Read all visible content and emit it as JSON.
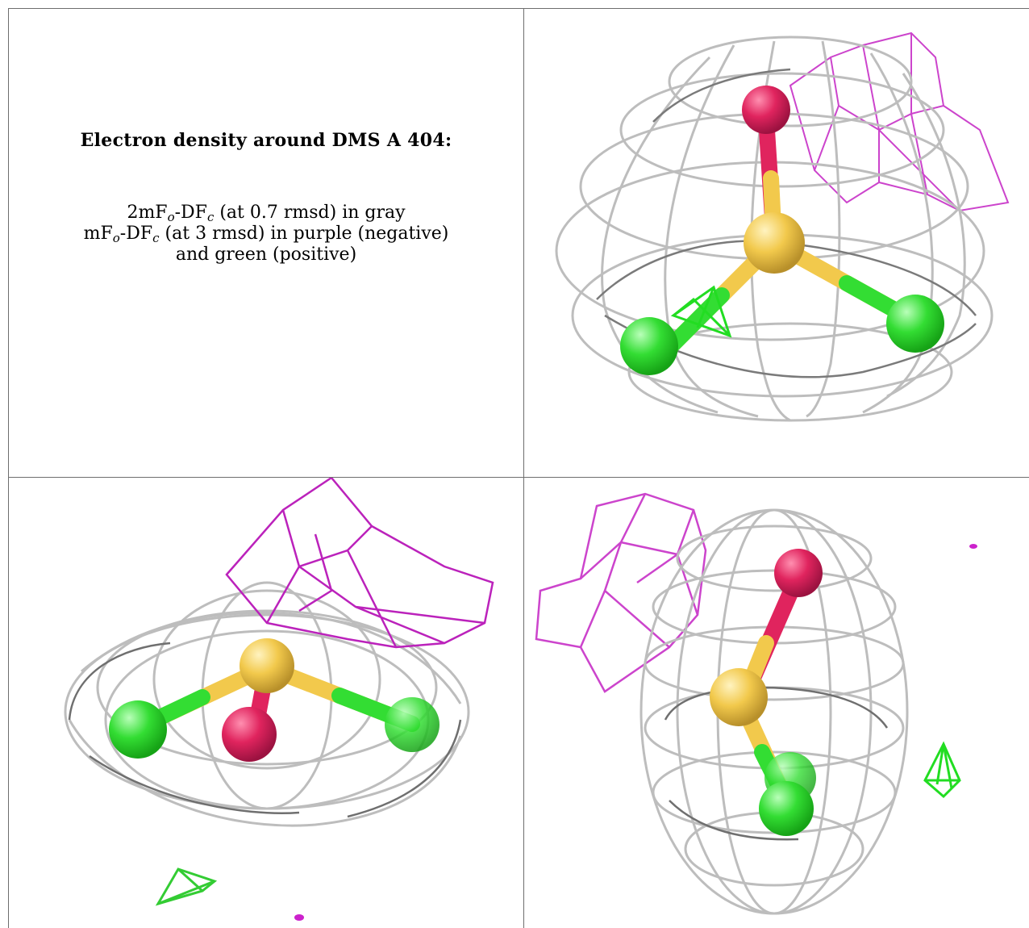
{
  "caption": {
    "title": "Electron density around DMS A 404:",
    "line1": {
      "a": "2mF",
      "b": "o",
      "c": "-DF",
      "d": "c",
      "e": " (at 0.7 rmsd) in gray"
    },
    "line2": {
      "a": "mF",
      "b": "o",
      "c": "-DF",
      "d": "c",
      "e": " (at 3 rmsd) in purple (negative)"
    },
    "line3": "and green (positive)"
  },
  "colors": {
    "mesh_gray": "#bdbdbd",
    "mesh_dark": "#6f6f6f",
    "negative_purple": "#cc33cc",
    "positive_green": "#22dd22",
    "sulfur": "#f2c94c",
    "oxygen": "#e0245e",
    "carbon_green": "#33dd33"
  },
  "panels": [
    {
      "name": "view-1"
    },
    {
      "name": "view-2"
    },
    {
      "name": "view-3"
    }
  ]
}
